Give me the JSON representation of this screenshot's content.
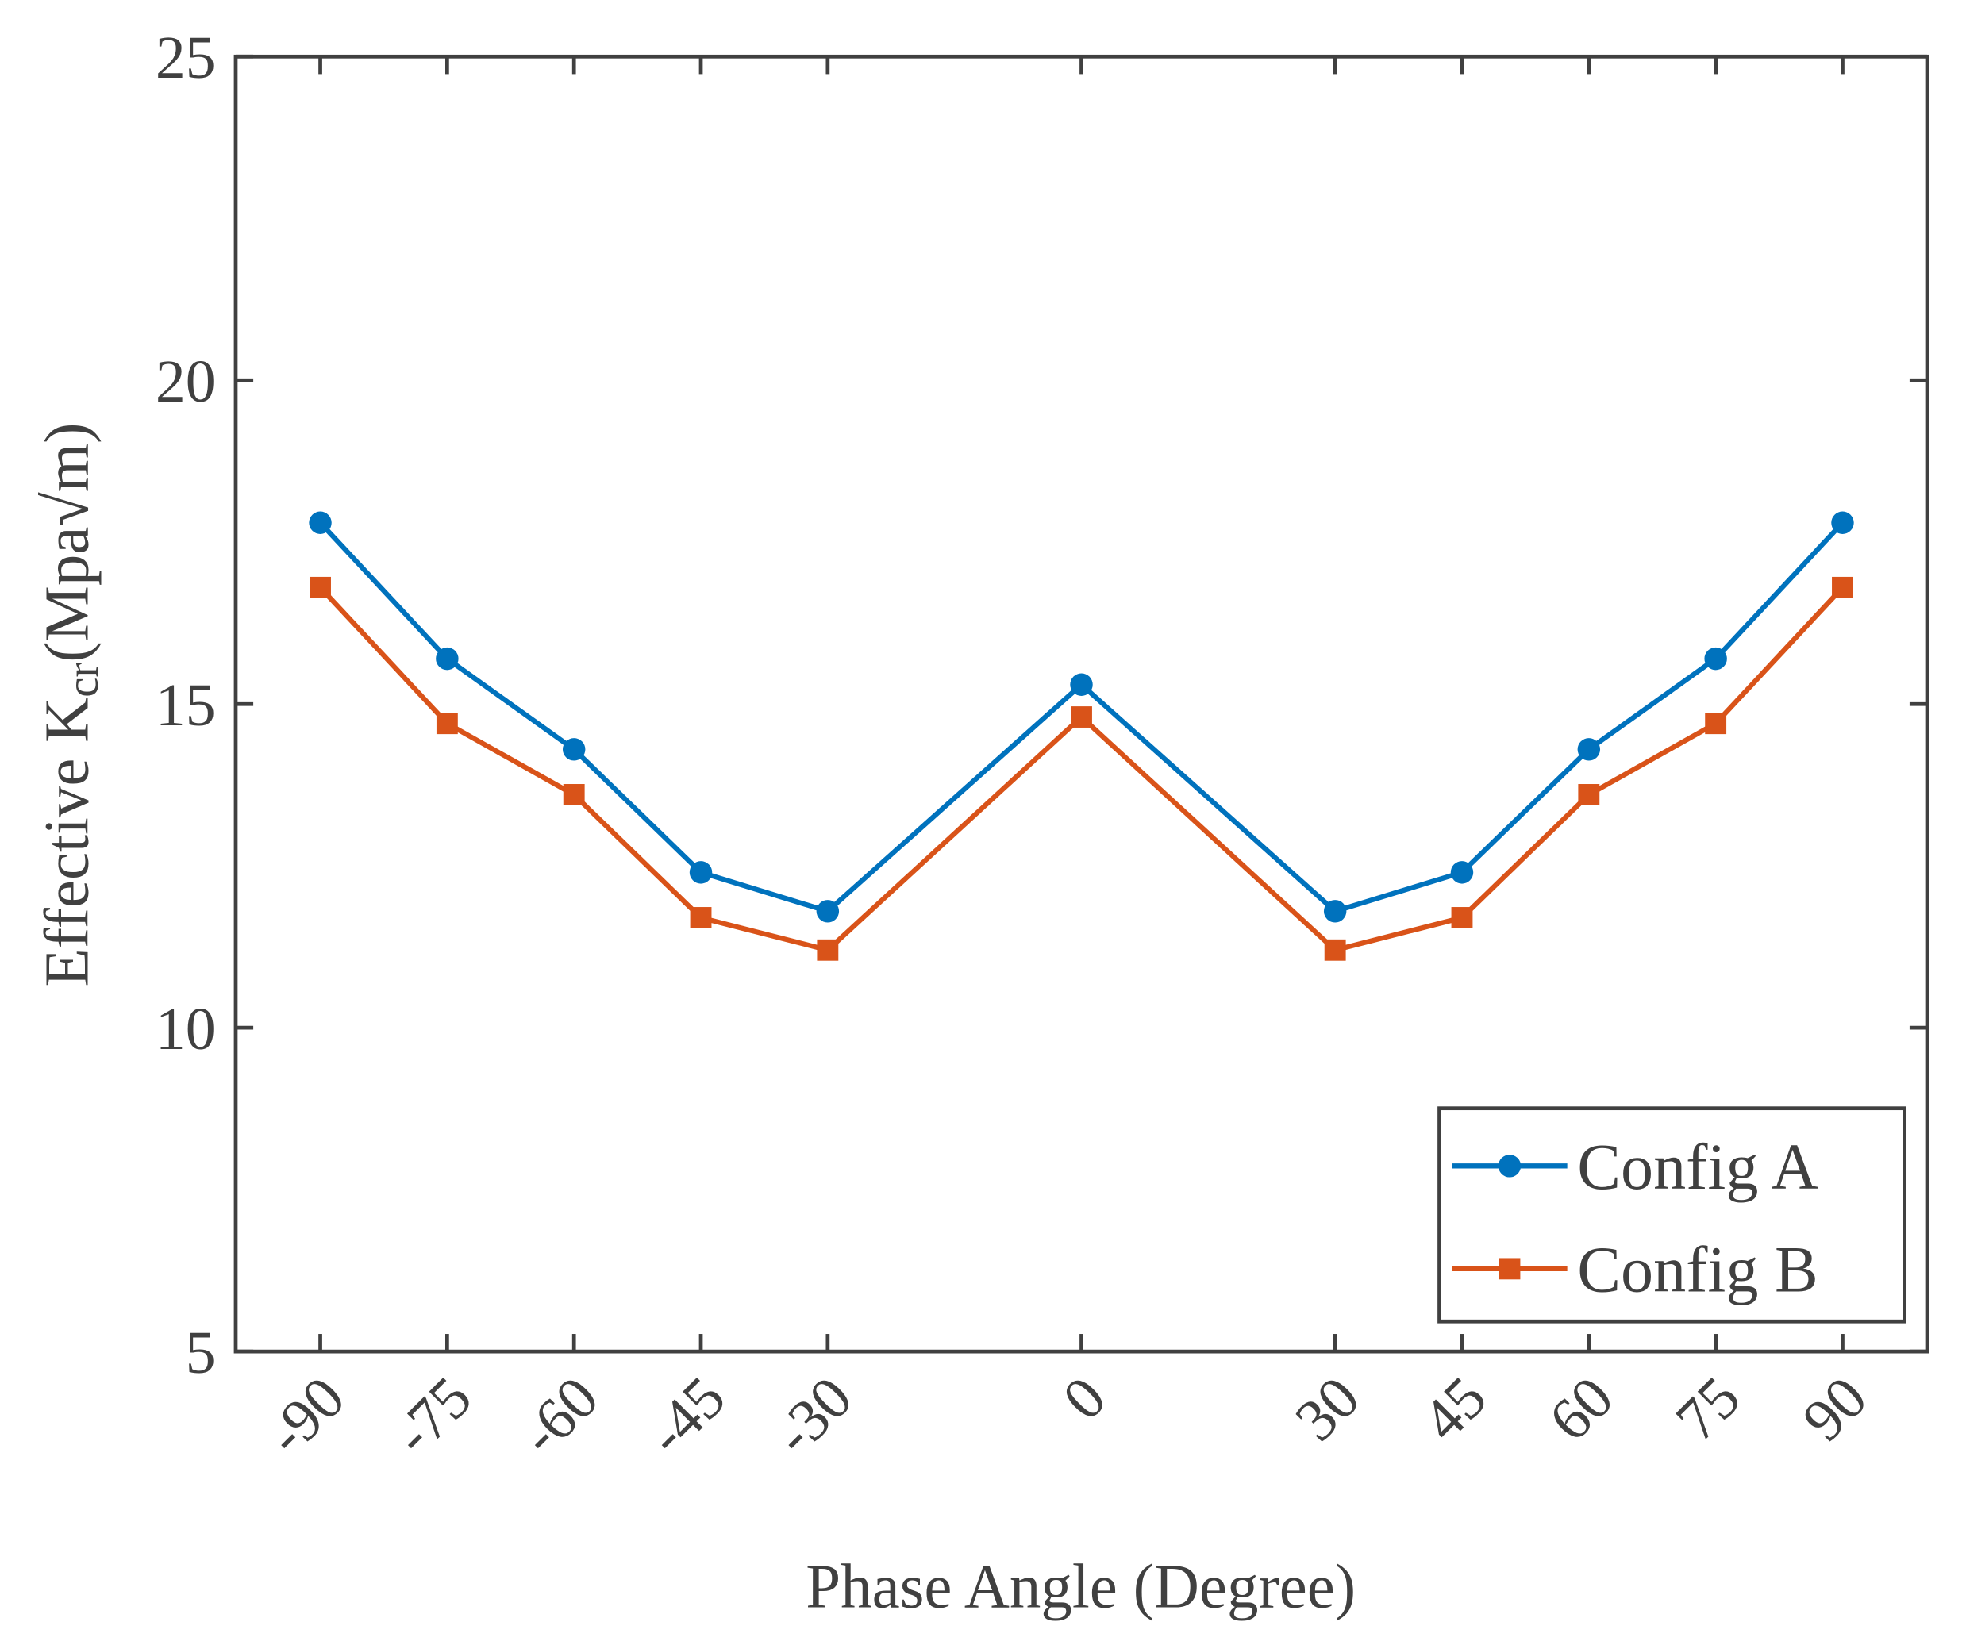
{
  "chart_data": {
    "type": "line",
    "title": "",
    "xlabel": "Phase Angle (Degree)",
    "ylabel": {
      "main": "Effective K",
      "sub": "cr",
      "unit": "(Mpa√m)"
    },
    "x": [
      -90,
      -75,
      -60,
      -45,
      -30,
      0,
      30,
      45,
      60,
      75,
      90
    ],
    "xticks": [
      "-90",
      "-75",
      "-60",
      "-45",
      "-30",
      "0",
      "30",
      "45",
      "60",
      "75",
      "90"
    ],
    "yticks": [
      "5",
      "10",
      "15",
      "20",
      "25"
    ],
    "xlim": [
      -100,
      100
    ],
    "ylim": [
      5,
      25
    ],
    "grid": false,
    "legend_position": "bottom-right",
    "series": [
      {
        "name": "Config A",
        "color": "#0072BD",
        "marker": "circle",
        "values": [
          17.8,
          15.7,
          14.3,
          12.4,
          11.8,
          15.3,
          11.8,
          12.4,
          14.3,
          15.7,
          17.8
        ]
      },
      {
        "name": "Config B",
        "color": "#D95319",
        "marker": "square",
        "values": [
          16.8,
          14.7,
          13.6,
          11.7,
          11.2,
          14.8,
          11.2,
          11.7,
          13.6,
          14.7,
          16.8
        ]
      }
    ]
  }
}
